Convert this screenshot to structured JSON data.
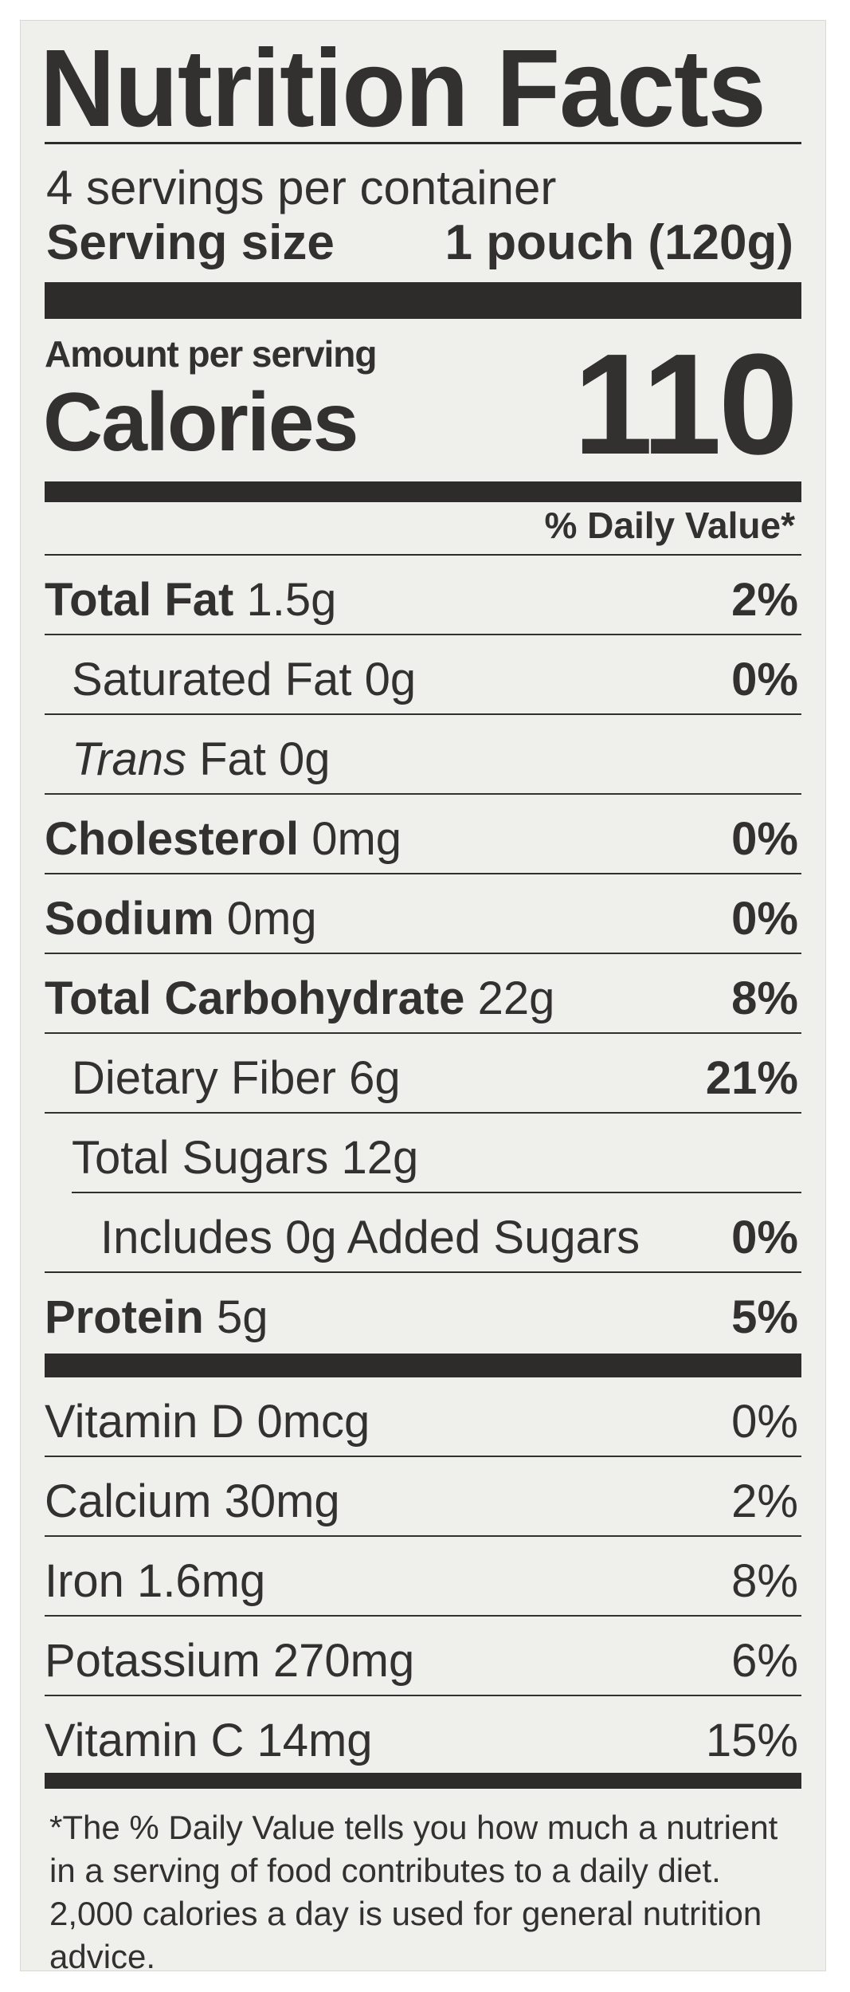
{
  "title": "Nutrition Facts",
  "servings_per_container": "4 servings per container",
  "serving_size": {
    "label": "Serving size",
    "value": "1 pouch (120g)"
  },
  "amount_per_serving": "Amount per serving",
  "calories": {
    "label": "Calories",
    "value": "110"
  },
  "daily_value_header": "% Daily Value*",
  "nutrients": [
    {
      "name": "Total Fat",
      "amount": "1.5g",
      "dv": "2%"
    },
    {
      "name": "Saturated Fat",
      "amount": "0g",
      "dv": "0%"
    },
    {
      "name_italic": "Trans",
      "name": "Fat",
      "amount": "0g",
      "dv": ""
    },
    {
      "name": "Cholesterol",
      "amount": "0mg",
      "dv": "0%"
    },
    {
      "name": "Sodium",
      "amount": "0mg",
      "dv": "0%"
    },
    {
      "name": "Total Carbohydrate",
      "amount": "22g",
      "dv": "8%"
    },
    {
      "name": "Dietary Fiber",
      "amount": "6g",
      "dv": "21%"
    },
    {
      "name": "Total Sugars",
      "amount": "12g",
      "dv": ""
    },
    {
      "name": "Includes 0g Added Sugars",
      "amount": "",
      "dv": "0%"
    },
    {
      "name": "Protein",
      "amount": "5g",
      "dv": "5%"
    }
  ],
  "vitamins": [
    {
      "name": "Vitamin D 0mcg",
      "dv": "0%"
    },
    {
      "name": "Calcium 30mg",
      "dv": "2%"
    },
    {
      "name": "Iron 1.6mg",
      "dv": "8%"
    },
    {
      "name": "Potassium 270mg",
      "dv": "6%"
    },
    {
      "name": "Vitamin C 14mg",
      "dv": "15%"
    }
  ],
  "footnote": "*The % Daily Value tells you how much a nutrient in a serving of food contributes to a daily diet. 2,000 calories a day is used for general nutrition advice."
}
